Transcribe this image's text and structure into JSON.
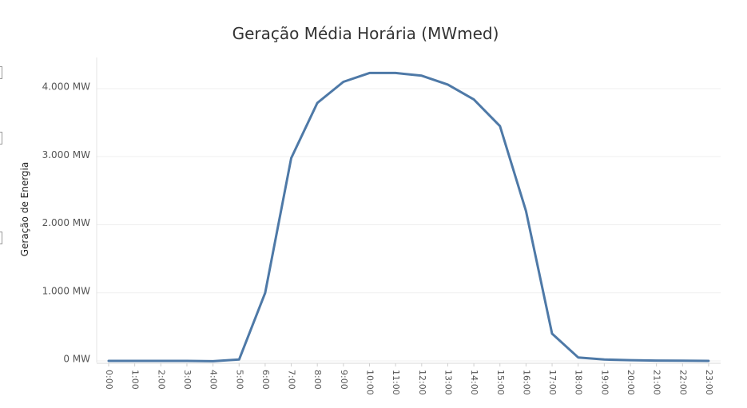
{
  "chart_data": {
    "type": "line",
    "title": "Geração Média Horária (MWmed)",
    "xlabel": "",
    "ylabel": "Geração de Energia",
    "categories": [
      "0:00",
      "1:00",
      "2:00",
      "3:00",
      "4:00",
      "5:00",
      "6:00",
      "7:00",
      "8:00",
      "9:00",
      "10:00",
      "11:00",
      "12:00",
      "13:00",
      "14:00",
      "15:00",
      "16:00",
      "17:00",
      "18:00",
      "19:00",
      "20:00",
      "21:00",
      "22:00",
      "23:00"
    ],
    "series": [
      {
        "values": [
          0,
          0,
          0,
          0,
          -5,
          20,
          1000,
          2980,
          3790,
          4100,
          4230,
          4230,
          4190,
          4060,
          3840,
          3450,
          2200,
          400,
          50,
          20,
          10,
          5,
          2,
          0
        ]
      }
    ],
    "ylim": [
      0,
      4500
    ],
    "yticks": [
      0,
      1000,
      2000,
      3000,
      4000
    ],
    "ytick_labels": [
      "0 MW",
      "1.000 MW",
      "2.000 MW",
      "3.000 MW",
      "4.000 MW"
    ],
    "grid": true,
    "legend": "none",
    "line_color": "#4e79a7"
  }
}
